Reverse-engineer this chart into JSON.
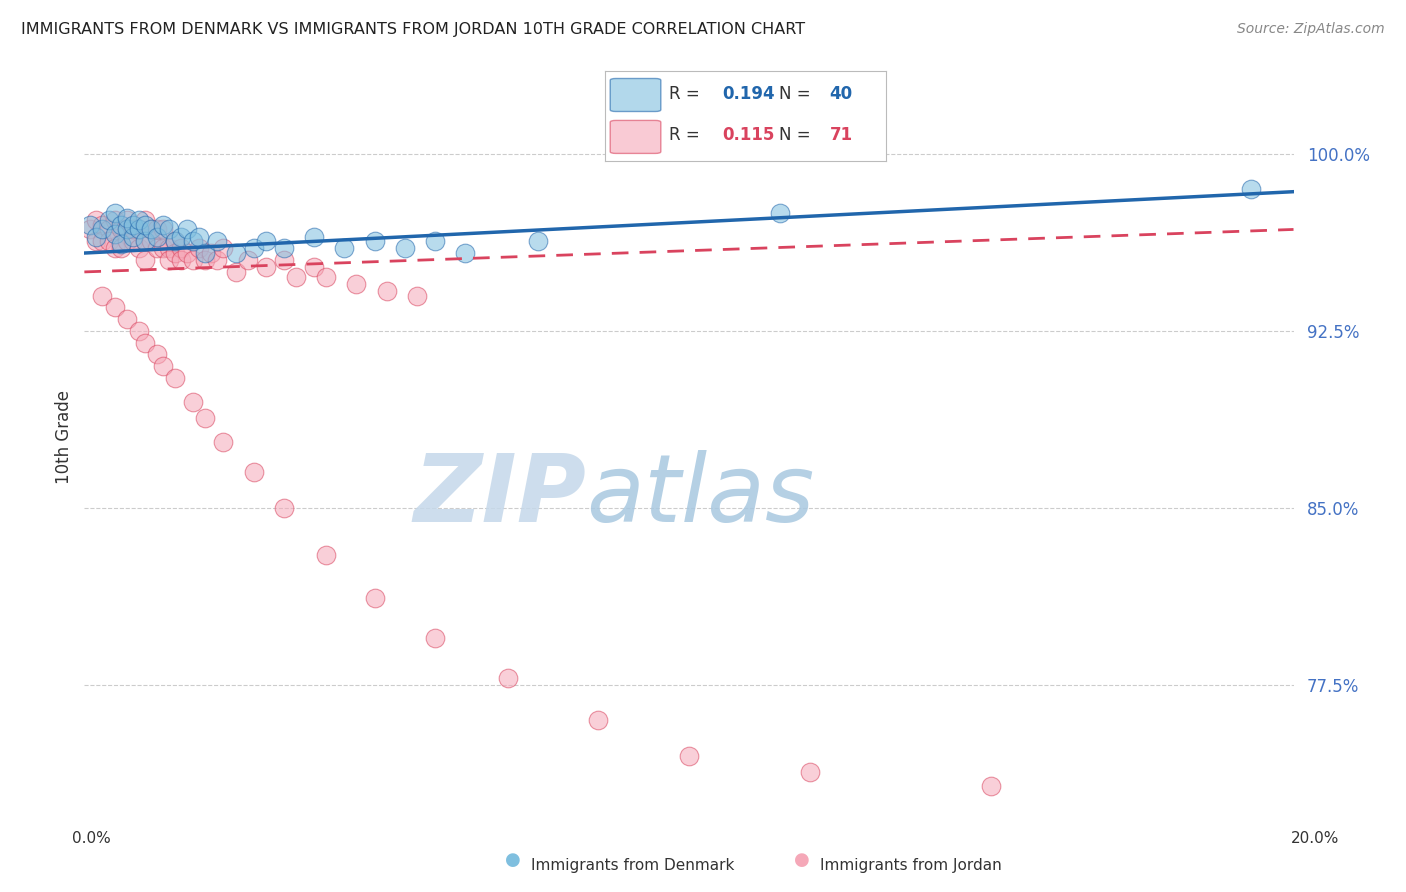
{
  "title": "IMMIGRANTS FROM DENMARK VS IMMIGRANTS FROM JORDAN 10TH GRADE CORRELATION CHART",
  "source": "Source: ZipAtlas.com",
  "ylabel": "10th Grade",
  "ytick_values": [
    0.775,
    0.85,
    0.925,
    1.0
  ],
  "xlim": [
    0.0,
    0.2
  ],
  "ylim": [
    0.725,
    1.035
  ],
  "R_denmark": 0.194,
  "N_denmark": 40,
  "R_jordan": 0.115,
  "N_jordan": 71,
  "color_denmark": "#7fbfdf",
  "color_jordan": "#f5a8b8",
  "trendline_denmark_color": "#2166ac",
  "trendline_jordan_color": "#d9435e",
  "background_color": "#ffffff",
  "grid_color": "#cccccc",
  "watermark_zip_color": "#c8d8e8",
  "watermark_atlas_color": "#a8c8e0",
  "dk_x": [
    0.001,
    0.002,
    0.003,
    0.004,
    0.005,
    0.005,
    0.006,
    0.006,
    0.007,
    0.007,
    0.008,
    0.008,
    0.009,
    0.009,
    0.01,
    0.01,
    0.011,
    0.012,
    0.013,
    0.014,
    0.015,
    0.016,
    0.017,
    0.018,
    0.019,
    0.02,
    0.022,
    0.025,
    0.028,
    0.03,
    0.033,
    0.038,
    0.043,
    0.048,
    0.053,
    0.058,
    0.063,
    0.075,
    0.115,
    0.193
  ],
  "dk_y": [
    0.97,
    0.965,
    0.968,
    0.972,
    0.966,
    0.975,
    0.962,
    0.97,
    0.968,
    0.973,
    0.965,
    0.97,
    0.968,
    0.972,
    0.963,
    0.97,
    0.968,
    0.965,
    0.97,
    0.968,
    0.963,
    0.965,
    0.968,
    0.963,
    0.965,
    0.958,
    0.963,
    0.958,
    0.96,
    0.963,
    0.96,
    0.965,
    0.96,
    0.963,
    0.96,
    0.963,
    0.958,
    0.963,
    0.975,
    0.985
  ],
  "jd_x": [
    0.001,
    0.002,
    0.002,
    0.003,
    0.003,
    0.004,
    0.004,
    0.005,
    0.005,
    0.006,
    0.006,
    0.007,
    0.007,
    0.007,
    0.008,
    0.008,
    0.009,
    0.009,
    0.01,
    0.01,
    0.01,
    0.011,
    0.011,
    0.012,
    0.012,
    0.013,
    0.013,
    0.014,
    0.014,
    0.015,
    0.015,
    0.016,
    0.016,
    0.017,
    0.018,
    0.019,
    0.02,
    0.021,
    0.022,
    0.023,
    0.025,
    0.027,
    0.03,
    0.033,
    0.035,
    0.038,
    0.04,
    0.045,
    0.05,
    0.055,
    0.003,
    0.005,
    0.007,
    0.009,
    0.01,
    0.012,
    0.013,
    0.015,
    0.018,
    0.02,
    0.023,
    0.028,
    0.033,
    0.04,
    0.048,
    0.058,
    0.07,
    0.085,
    0.1,
    0.12,
    0.15
  ],
  "jd_y": [
    0.968,
    0.972,
    0.963,
    0.97,
    0.963,
    0.968,
    0.963,
    0.972,
    0.96,
    0.968,
    0.96,
    0.968,
    0.963,
    0.972,
    0.963,
    0.968,
    0.96,
    0.968,
    0.963,
    0.972,
    0.955,
    0.963,
    0.968,
    0.96,
    0.968,
    0.96,
    0.968,
    0.96,
    0.955,
    0.963,
    0.958,
    0.96,
    0.955,
    0.958,
    0.955,
    0.96,
    0.955,
    0.958,
    0.955,
    0.96,
    0.95,
    0.955,
    0.952,
    0.955,
    0.948,
    0.952,
    0.948,
    0.945,
    0.942,
    0.94,
    0.94,
    0.935,
    0.93,
    0.925,
    0.92,
    0.915,
    0.91,
    0.905,
    0.895,
    0.888,
    0.878,
    0.865,
    0.85,
    0.83,
    0.812,
    0.795,
    0.778,
    0.76,
    0.745,
    0.738,
    0.732
  ],
  "trendline_dk_x0": 0.0,
  "trendline_dk_y0": 0.958,
  "trendline_dk_x1": 0.2,
  "trendline_dk_y1": 0.984,
  "trendline_jd_x0": 0.0,
  "trendline_jd_y0": 0.95,
  "trendline_jd_x1": 0.2,
  "trendline_jd_y1": 0.968
}
